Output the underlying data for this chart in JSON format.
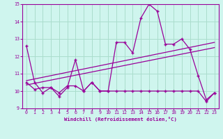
{
  "xlabel": "Windchill (Refroidissement éolien,°C)",
  "bg_color": "#cff5ee",
  "line_color": "#990099",
  "grid_color": "#aaddcc",
  "xlim": [
    -0.5,
    23.5
  ],
  "ylim": [
    9,
    15
  ],
  "yticks": [
    9,
    10,
    11,
    12,
    13,
    14,
    15
  ],
  "xticks": [
    0,
    1,
    2,
    3,
    4,
    5,
    6,
    7,
    8,
    9,
    10,
    11,
    12,
    13,
    14,
    15,
    16,
    17,
    18,
    19,
    20,
    21,
    22,
    23
  ],
  "series1_x": [
    0,
    1,
    2,
    3,
    4,
    5,
    6,
    7,
    8,
    9,
    10,
    11,
    12,
    13,
    14,
    15,
    16,
    17,
    18,
    19,
    20,
    21,
    22,
    23
  ],
  "series1_y": [
    12.6,
    10.5,
    9.9,
    10.2,
    9.7,
    10.2,
    11.8,
    10.0,
    10.5,
    10.0,
    10.0,
    12.8,
    12.8,
    12.2,
    14.2,
    15.0,
    14.6,
    12.7,
    12.7,
    13.0,
    12.4,
    10.9,
    9.5,
    9.9
  ],
  "series2_x": [
    0,
    1,
    2,
    3,
    4,
    5,
    6,
    7,
    8,
    9,
    10,
    11,
    12,
    13,
    14,
    15,
    16,
    17,
    18,
    19,
    20,
    21,
    22,
    23
  ],
  "series2_y": [
    10.5,
    10.1,
    10.2,
    10.2,
    9.9,
    10.3,
    10.3,
    10.0,
    10.5,
    10.0,
    10.0,
    10.0,
    10.0,
    10.0,
    10.0,
    10.0,
    10.0,
    10.0,
    10.0,
    10.0,
    10.0,
    10.0,
    9.4,
    9.9
  ],
  "trend1_x": [
    0,
    23
  ],
  "trend1_y": [
    10.6,
    12.8
  ],
  "trend2_x": [
    0,
    23
  ],
  "trend2_y": [
    10.35,
    12.5
  ]
}
